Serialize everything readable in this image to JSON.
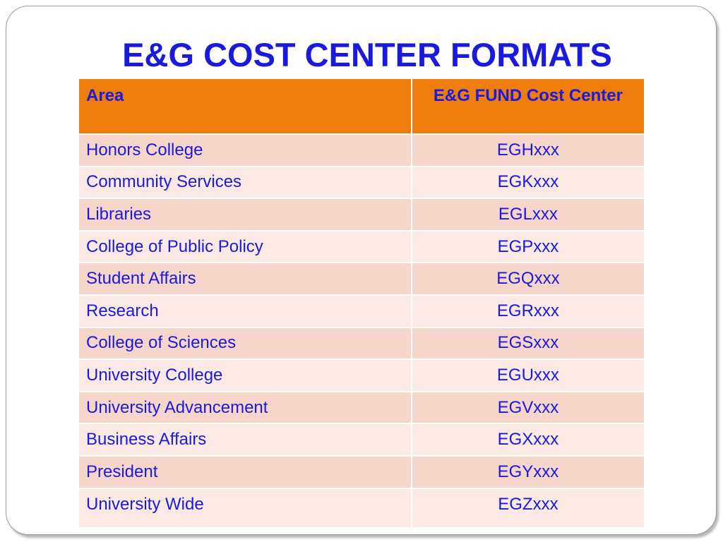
{
  "title": "E&G COST CENTER FORMATS",
  "colors": {
    "title": "#1a1adf",
    "header_background": "#ee7d0c",
    "row_odd_background": "#f6d5cb",
    "row_even_background": "#fbe9e5"
  },
  "table": {
    "headers": [
      "Area",
      "E&G FUND Cost Center"
    ],
    "rows": [
      {
        "area": "Honors College",
        "code": "EGHxxx"
      },
      {
        "area": "Community Services",
        "code": "EGKxxx"
      },
      {
        "area": "Libraries",
        "code": "EGLxxx"
      },
      {
        "area": "College of Public Policy",
        "code": "EGPxxx"
      },
      {
        "area": "Student Affairs",
        "code": "EGQxxx"
      },
      {
        "area": "Research",
        "code": "EGRxxx"
      },
      {
        "area": "College of Sciences",
        "code": "EGSxxx"
      },
      {
        "area": "University College",
        "code": "EGUxxx"
      },
      {
        "area": "University Advancement",
        "code": "EGVxxx"
      },
      {
        "area": "Business Affairs",
        "code": "EGXxxx"
      },
      {
        "area": "President",
        "code": "EGYxxx"
      },
      {
        "area": "University Wide",
        "code": "EGZxxx"
      }
    ]
  }
}
